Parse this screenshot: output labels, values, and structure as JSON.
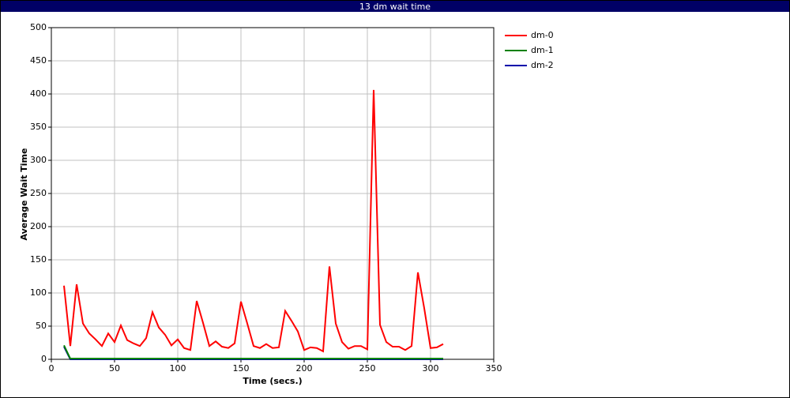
{
  "chart_data": {
    "type": "line",
    "title": "13 dm wait time",
    "x_label": "Time (secs.)",
    "y_label": "Average Wait Time",
    "x": [
      10,
      15,
      20,
      25,
      30,
      35,
      40,
      45,
      50,
      55,
      60,
      65,
      70,
      75,
      80,
      85,
      90,
      95,
      100,
      105,
      110,
      115,
      120,
      125,
      130,
      135,
      140,
      145,
      150,
      155,
      160,
      165,
      170,
      175,
      180,
      185,
      190,
      195,
      200,
      205,
      210,
      215,
      220,
      225,
      230,
      235,
      240,
      245,
      250,
      255,
      260,
      265,
      270,
      275,
      280,
      285,
      290,
      295,
      300,
      305,
      310
    ],
    "series": [
      {
        "name": "dm-0",
        "color": "#ff0000",
        "values": [
          111,
          20,
          113,
          54,
          39,
          30,
          20,
          39,
          26,
          51,
          29,
          24,
          20,
          32,
          71,
          48,
          37,
          21,
          30,
          17,
          14,
          88,
          55,
          20,
          27,
          19,
          17,
          24,
          87,
          54,
          20,
          17,
          23,
          17,
          18,
          73,
          58,
          42,
          14,
          18,
          17,
          12,
          140,
          54,
          26,
          16,
          20,
          20,
          15,
          406,
          52,
          26,
          19,
          19,
          14,
          20,
          131,
          77,
          17,
          18,
          23
        ]
      },
      {
        "name": "dm-1",
        "color": "#008000",
        "values": [
          21,
          1,
          1,
          1,
          1,
          1,
          1,
          1,
          1,
          1,
          1,
          1,
          1,
          1,
          1,
          1,
          1,
          1,
          1,
          1,
          1,
          1,
          1,
          1,
          1,
          1,
          1,
          1,
          1,
          1,
          1,
          1,
          1,
          1,
          1,
          1,
          1,
          1,
          1,
          1,
          1,
          1,
          1,
          1,
          1,
          1,
          1,
          1,
          1,
          1,
          1,
          1,
          1,
          1,
          1,
          1,
          1,
          1,
          1,
          1,
          1
        ]
      },
      {
        "name": "dm-2",
        "color": "#0000aa",
        "values": [
          19,
          0,
          0,
          0,
          0,
          0,
          0,
          0,
          0,
          0,
          0,
          0,
          0,
          0,
          0,
          0,
          0,
          0,
          0,
          0,
          0,
          0,
          0,
          0,
          0,
          0,
          0,
          0,
          0,
          0,
          0,
          0,
          0,
          0,
          0,
          0,
          0,
          0,
          0,
          0,
          0,
          0,
          0,
          0,
          0,
          0,
          0,
          0,
          0,
          0,
          0,
          0,
          0,
          0,
          0,
          0,
          0,
          0,
          0,
          0,
          0
        ]
      }
    ],
    "xlim": [
      0,
      350
    ],
    "xticks": [
      0,
      50,
      100,
      150,
      200,
      250,
      300,
      350
    ],
    "ylim": [
      0,
      500
    ],
    "yticks": [
      0,
      50,
      100,
      150,
      200,
      250,
      300,
      350,
      400,
      450,
      500
    ],
    "grid": true
  }
}
